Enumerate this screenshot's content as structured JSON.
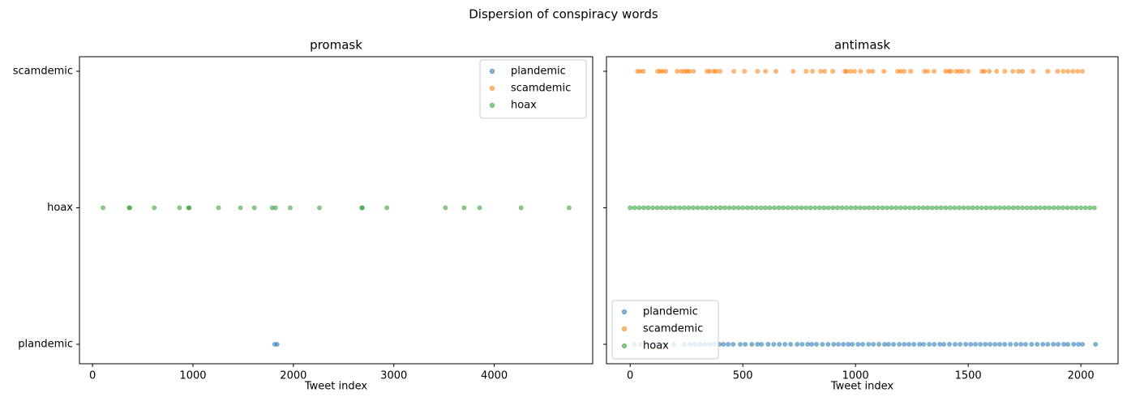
{
  "title": "Dispersion of conspiracy words",
  "chart_data": [
    {
      "type": "scatter",
      "title": "promask",
      "xlabel": "Tweet index",
      "categories": [
        "plandemic",
        "hoax",
        "scamdemic"
      ],
      "xlim": [
        -130,
        4980
      ],
      "xticks": [
        0,
        1000,
        2000,
        3000,
        4000
      ],
      "legend": "upper right",
      "series": [
        {
          "name": "plandemic",
          "color": "#1f77b4",
          "x": [
            1814,
            1838
          ]
        },
        {
          "name": "scamdemic",
          "color": "#ff7f0e",
          "x": []
        },
        {
          "name": "hoax",
          "color": "#2ca02c",
          "x": [
            105,
            364,
            372,
            615,
            866,
            955,
            964,
            1255,
            1474,
            1611,
            1789,
            1822,
            1968,
            2259,
            2680,
            2688,
            2931,
            3514,
            3700,
            3854,
            4267,
            4745
          ]
        }
      ]
    },
    {
      "type": "scatter",
      "title": "antimask",
      "xlabel": "Tweet index",
      "sharey": true,
      "xlim": [
        -105,
        2165
      ],
      "xticks": [
        0,
        500,
        1000,
        1500,
        2000
      ],
      "legend": "lower left",
      "series": [
        {
          "name": "plandemic",
          "color": "#1f77b4",
          "x": [
            18,
            47,
            79,
            108,
            151,
            194,
            241,
            266,
            288,
            309,
            331,
            353,
            374,
            396,
            414,
            435,
            457,
            489,
            511,
            540,
            565,
            583,
            612,
            637,
            662,
            687,
            712,
            741,
            763,
            788,
            806,
            827,
            853,
            878,
            903,
            924,
            946,
            968,
            986,
            1011,
            1032,
            1058,
            1079,
            1104,
            1129,
            1147,
            1169,
            1194,
            1216,
            1237,
            1259,
            1284,
            1302,
            1327,
            1349,
            1374,
            1392,
            1417,
            1442,
            1464,
            1489,
            1511,
            1532,
            1554,
            1576,
            1597,
            1619,
            1640,
            1662,
            1687,
            1712,
            1734,
            1755,
            1781,
            1806,
            1831,
            1853,
            1878,
            1899,
            1924,
            1942,
            1968,
            1989,
            2007,
            2065
          ]
        },
        {
          "name": "scamdemic",
          "color": "#ff7f0e",
          "x": [
            32,
            43,
            58,
            122,
            133,
            144,
            158,
            209,
            227,
            241,
            252,
            263,
            281,
            342,
            353,
            371,
            381,
            399,
            460,
            507,
            565,
            601,
            647,
            723,
            781,
            809,
            845,
            863,
            899,
            953,
            960,
            978,
            996,
            1022,
            1058,
            1076,
            1126,
            1187,
            1201,
            1216,
            1245,
            1306,
            1320,
            1349,
            1399,
            1414,
            1424,
            1446,
            1460,
            1475,
            1500,
            1561,
            1572,
            1594,
            1626,
            1662,
            1698,
            1723,
            1741,
            1788,
            1853,
            1896,
            1921,
            1942,
            1964,
            1986,
            2007
          ]
        },
        {
          "name": "hoax",
          "color": "#2ca02c",
          "x": [
            0,
            20,
            40,
            60,
            80,
            100,
            120,
            140,
            160,
            180,
            200,
            220,
            240,
            260,
            280,
            300,
            320,
            340,
            360,
            380,
            400,
            420,
            440,
            460,
            480,
            500,
            520,
            540,
            560,
            580,
            600,
            620,
            640,
            660,
            680,
            700,
            720,
            740,
            760,
            780,
            800,
            820,
            840,
            860,
            880,
            900,
            920,
            940,
            960,
            980,
            1000,
            1020,
            1040,
            1060,
            1080,
            1100,
            1120,
            1140,
            1160,
            1180,
            1200,
            1220,
            1240,
            1260,
            1280,
            1300,
            1320,
            1340,
            1360,
            1380,
            1400,
            1420,
            1440,
            1460,
            1480,
            1500,
            1520,
            1540,
            1560,
            1580,
            1600,
            1620,
            1640,
            1660,
            1680,
            1700,
            1720,
            1740,
            1760,
            1780,
            1800,
            1820,
            1840,
            1860,
            1880,
            1900,
            1920,
            1940,
            1960,
            1980,
            2000,
            2020,
            2040,
            2060
          ]
        }
      ]
    }
  ]
}
